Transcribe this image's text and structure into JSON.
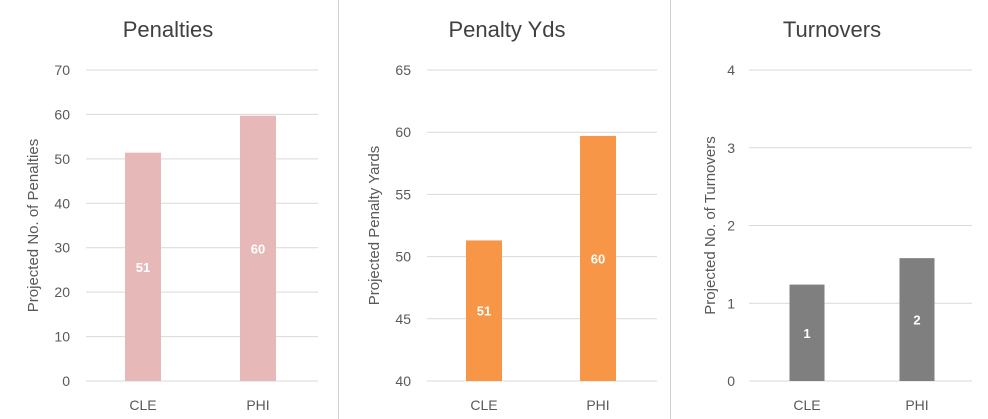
{
  "chart_data": [
    {
      "type": "bar",
      "title": "Penalties",
      "ylabel": "Projected No. of Penalties",
      "xlabel": "",
      "categories": [
        "CLE",
        "PHI"
      ],
      "values": [
        51.4,
        59.7
      ],
      "data_labels": [
        "51",
        "60"
      ],
      "ylim": [
        0,
        70
      ],
      "yticks": [
        0,
        10,
        20,
        30,
        40,
        50,
        60,
        70
      ],
      "color": "#e6b9b8",
      "grid": true
    },
    {
      "type": "bar",
      "title": "Penalty Yds",
      "ylabel": "Projected Penalty Yards",
      "xlabel": "",
      "categories": [
        "CLE",
        "PHI"
      ],
      "values": [
        51.3,
        59.7
      ],
      "data_labels": [
        "51",
        "60"
      ],
      "ylim": [
        40,
        65
      ],
      "yticks": [
        40,
        45,
        50,
        55,
        60,
        65
      ],
      "color": "#f79646",
      "grid": true
    },
    {
      "type": "bar",
      "title": "Turnovers",
      "ylabel": "Projected No. of Turnovers",
      "xlabel": "",
      "categories": [
        "CLE",
        "PHI"
      ],
      "values": [
        1.24,
        1.58
      ],
      "data_labels": [
        "1",
        "2"
      ],
      "ylim": [
        0,
        4
      ],
      "yticks": [
        0,
        1,
        2,
        3,
        4
      ],
      "color": "#7f7f7f",
      "grid": true
    }
  ]
}
